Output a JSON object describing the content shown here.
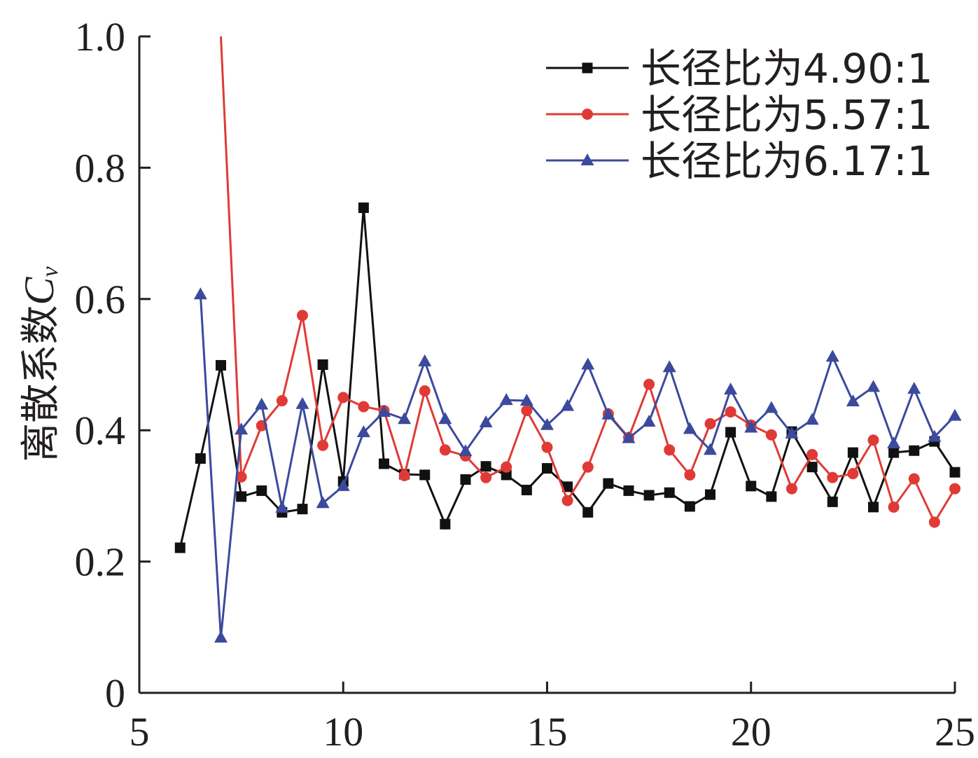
{
  "chart_data": {
    "type": "line",
    "title": "",
    "xlabel": "",
    "ylabel": "离散系数",
    "ylabel_symbol": "C",
    "ylabel_subscript": "v",
    "xlim": [
      5,
      25
    ],
    "ylim": [
      0,
      1.0
    ],
    "xticks": [
      "5",
      "10",
      "15",
      "20",
      "25"
    ],
    "yticks": [
      "0",
      "0.2",
      "0.4",
      "0.6",
      "0.8",
      "1.0"
    ],
    "legend_position": "top-right",
    "grid": false,
    "series": [
      {
        "name": "长径比为4.90:1",
        "color": "#111111",
        "marker": "square",
        "points": [
          [
            6.0,
            0.221
          ],
          [
            6.5,
            0.357
          ],
          [
            7.0,
            0.499
          ],
          [
            7.5,
            0.299
          ],
          [
            8.0,
            0.308
          ],
          [
            8.5,
            0.275
          ],
          [
            9.0,
            0.28
          ],
          [
            9.5,
            0.5
          ],
          [
            10.0,
            0.322
          ],
          [
            10.5,
            0.739
          ],
          [
            11.0,
            0.349
          ],
          [
            11.5,
            0.333
          ],
          [
            12.0,
            0.332
          ],
          [
            12.5,
            0.257
          ],
          [
            13.0,
            0.325
          ],
          [
            13.5,
            0.345
          ],
          [
            14.0,
            0.332
          ],
          [
            14.5,
            0.309
          ],
          [
            15.0,
            0.342
          ],
          [
            15.5,
            0.314
          ],
          [
            16.0,
            0.275
          ],
          [
            16.5,
            0.319
          ],
          [
            17.0,
            0.308
          ],
          [
            17.5,
            0.301
          ],
          [
            18.0,
            0.305
          ],
          [
            18.5,
            0.284
          ],
          [
            19.0,
            0.302
          ],
          [
            19.5,
            0.397
          ],
          [
            20.0,
            0.315
          ],
          [
            20.5,
            0.299
          ],
          [
            21.0,
            0.398
          ],
          [
            21.5,
            0.344
          ],
          [
            22.0,
            0.291
          ],
          [
            22.5,
            0.366
          ],
          [
            23.0,
            0.283
          ],
          [
            23.5,
            0.366
          ],
          [
            24.0,
            0.369
          ],
          [
            24.5,
            0.383
          ],
          [
            25.0,
            0.336
          ]
        ]
      },
      {
        "name": "长径比为5.57:1",
        "color": "#e03a36",
        "marker": "circle",
        "points": [
          [
            7.0,
            1.0
          ],
          [
            7.5,
            0.329
          ],
          [
            8.0,
            0.407
          ],
          [
            8.5,
            0.445
          ],
          [
            9.0,
            0.575
          ],
          [
            9.5,
            0.377
          ],
          [
            10.0,
            0.45
          ],
          [
            10.5,
            0.436
          ],
          [
            11.0,
            0.43
          ],
          [
            11.5,
            0.331
          ],
          [
            12.0,
            0.46
          ],
          [
            12.5,
            0.37
          ],
          [
            13.0,
            0.361
          ],
          [
            13.5,
            0.328
          ],
          [
            14.0,
            0.344
          ],
          [
            14.5,
            0.43
          ],
          [
            15.0,
            0.374
          ],
          [
            15.5,
            0.293
          ],
          [
            16.0,
            0.344
          ],
          [
            16.5,
            0.425
          ],
          [
            17.0,
            0.389
          ],
          [
            17.5,
            0.47
          ],
          [
            18.0,
            0.37
          ],
          [
            18.5,
            0.332
          ],
          [
            19.0,
            0.41
          ],
          [
            19.5,
            0.428
          ],
          [
            20.0,
            0.408
          ],
          [
            20.5,
            0.393
          ],
          [
            21.0,
            0.311
          ],
          [
            21.5,
            0.363
          ],
          [
            22.0,
            0.328
          ],
          [
            22.5,
            0.334
          ],
          [
            23.0,
            0.385
          ],
          [
            23.5,
            0.283
          ],
          [
            24.0,
            0.326
          ],
          [
            24.5,
            0.26
          ],
          [
            25.0,
            0.311
          ]
        ]
      },
      {
        "name": "长径比为6.17:1",
        "color": "#3b4a9c",
        "marker": "triangle",
        "points": [
          [
            6.5,
            0.607
          ],
          [
            7.0,
            0.084
          ],
          [
            7.5,
            0.401
          ],
          [
            8.0,
            0.439
          ],
          [
            8.5,
            0.282
          ],
          [
            9.0,
            0.44
          ],
          [
            9.5,
            0.289
          ],
          [
            10.0,
            0.315
          ],
          [
            10.5,
            0.397
          ],
          [
            11.0,
            0.428
          ],
          [
            11.5,
            0.417
          ],
          [
            12.0,
            0.505
          ],
          [
            12.5,
            0.417
          ],
          [
            13.0,
            0.368
          ],
          [
            13.5,
            0.412
          ],
          [
            14.0,
            0.446
          ],
          [
            14.5,
            0.445
          ],
          [
            15.0,
            0.408
          ],
          [
            15.5,
            0.437
          ],
          [
            16.0,
            0.5
          ],
          [
            16.5,
            0.424
          ],
          [
            17.0,
            0.388
          ],
          [
            17.5,
            0.413
          ],
          [
            18.0,
            0.496
          ],
          [
            18.5,
            0.402
          ],
          [
            19.0,
            0.37
          ],
          [
            19.5,
            0.462
          ],
          [
            20.0,
            0.404
          ],
          [
            20.5,
            0.434
          ],
          [
            21.0,
            0.395
          ],
          [
            21.5,
            0.416
          ],
          [
            22.0,
            0.512
          ],
          [
            22.5,
            0.444
          ],
          [
            23.0,
            0.466
          ],
          [
            23.5,
            0.38
          ],
          [
            24.0,
            0.463
          ],
          [
            24.5,
            0.39
          ],
          [
            25.0,
            0.422
          ]
        ]
      }
    ]
  }
}
